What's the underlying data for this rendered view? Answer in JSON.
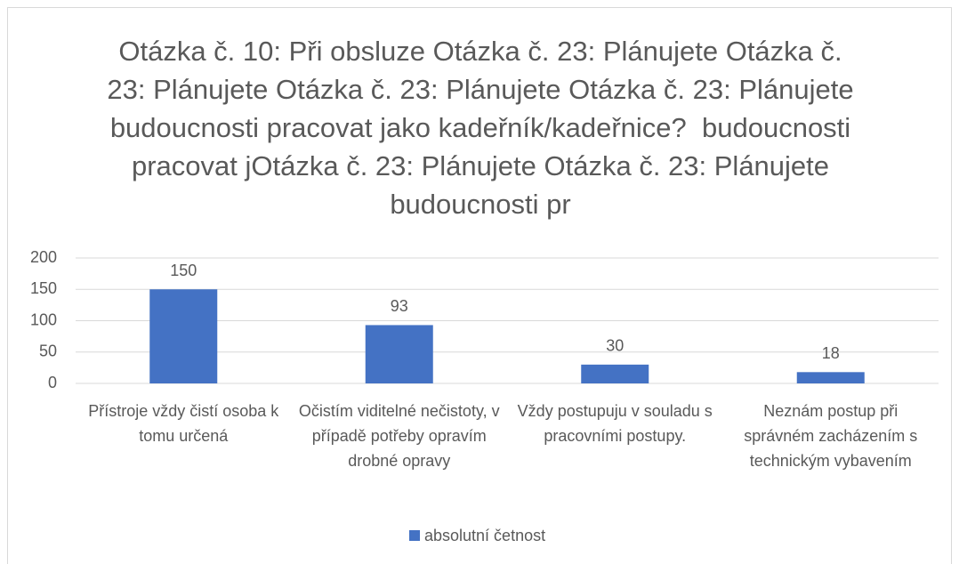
{
  "chart_data": {
    "type": "bar",
    "title": "Otázka č. 10: Při obsluze Otázka č. 23: Plánujete Otázka č. 23: Plánujete Otázka č. 23: Plánujete Otázka č. 23: Plánujete  budoucnosti pracovat jako kadeřník/kadeřnice?  budoucnosti pracovat jOtázka č. 23: Plánujete Otázka č. 23: Plánujete  budoucnosti pr",
    "categories": [
      "Přístroje vždy čistí osoba k tomu určená",
      "Očistím viditelné nečistoty, v případě potřeby opravím drobné opravy",
      "Vždy postupuju v souladu s pracovními postupy.",
      "Neznám postup při správném zacházením s technickým vybavením"
    ],
    "series": [
      {
        "name": "absolutní četnost",
        "color": "#4472c4",
        "values": [
          150,
          93,
          30,
          18
        ]
      }
    ],
    "ylim": [
      0,
      200
    ],
    "yticks": [
      0,
      50,
      100,
      150,
      200
    ],
    "grid": true,
    "legend": "bottom"
  }
}
